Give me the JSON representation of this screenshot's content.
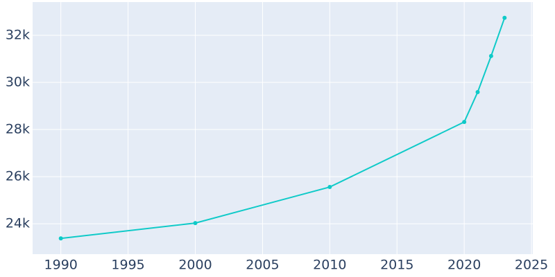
{
  "chart_data": {
    "type": "line",
    "x": [
      1990,
      2000,
      2010,
      2020,
      2021,
      2022,
      2023
    ],
    "series": [
      {
        "color": "#0fcac8",
        "values": [
          23380,
          24030,
          25560,
          28320,
          29590,
          31120,
          32740
        ]
      }
    ],
    "xlim": [
      1987.9,
      2025.1
    ],
    "ylim": [
      22710,
      33410
    ],
    "xticks": [
      1990,
      1995,
      2000,
      2005,
      2010,
      2015,
      2020,
      2025
    ],
    "yticks": [
      {
        "value": 24000,
        "label": "24k"
      },
      {
        "value": 26000,
        "label": "26k"
      },
      {
        "value": 28000,
        "label": "28k"
      },
      {
        "value": 30000,
        "label": "30k"
      },
      {
        "value": 32000,
        "label": "32k"
      }
    ],
    "grid": true
  }
}
